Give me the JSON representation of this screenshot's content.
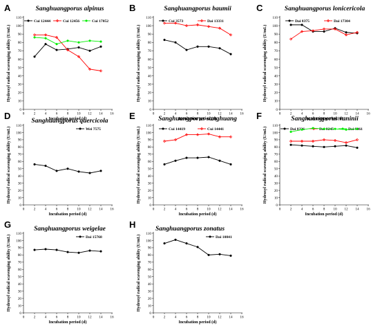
{
  "chart_data": [
    {
      "type": "line",
      "panel_label": "A",
      "title": "Sanghuangporus alpinus",
      "xlabel": "Incubation period (d)",
      "ylabel": "Hydroxyl radical scavenging ability (U/mL)",
      "xlim": [
        0,
        16
      ],
      "ylim": [
        0,
        110
      ],
      "xticks": [
        0,
        2,
        4,
        6,
        8,
        10,
        12,
        14,
        16
      ],
      "yticks": [
        0,
        10,
        20,
        30,
        40,
        50,
        60,
        70,
        80,
        90,
        100,
        110
      ],
      "legend_position": "top",
      "x": [
        2,
        4,
        6,
        8,
        10,
        12,
        14
      ],
      "series": [
        {
          "name": "Cui 12444",
          "color": "#000000",
          "values": [
            63,
            78,
            71,
            72,
            74,
            70,
            75
          ]
        },
        {
          "name": "Cui 12456",
          "color": "#ff0000",
          "values": [
            89,
            89,
            86,
            71,
            63,
            48,
            46
          ]
        },
        {
          "name": "Cui 17052",
          "color": "#00ee00",
          "values": [
            86,
            85,
            78,
            82,
            80,
            82,
            81
          ]
        }
      ]
    },
    {
      "type": "line",
      "panel_label": "B",
      "title": "Sanghuangporus baumii",
      "xlabel": "Incubation period (d)",
      "ylabel": "Hydroxyl radical scavenging ability (U/mL)",
      "xlim": [
        0,
        16
      ],
      "ylim": [
        0,
        110
      ],
      "xticks": [
        0,
        2,
        4,
        6,
        8,
        10,
        12,
        14,
        16
      ],
      "yticks": [
        0,
        10,
        20,
        30,
        40,
        50,
        60,
        70,
        80,
        90,
        100,
        110
      ],
      "legend_position": "top",
      "x": [
        2,
        4,
        6,
        8,
        10,
        12,
        14
      ],
      "series": [
        {
          "name": "Cui 3573",
          "color": "#000000",
          "values": [
            83,
            80,
            71,
            75,
            75,
            73,
            66
          ]
        },
        {
          "name": "Dai 13331",
          "color": "#ff0000",
          "values": [
            103,
            103,
            100,
            101,
            99,
            97,
            89
          ]
        }
      ]
    },
    {
      "type": "line",
      "panel_label": "C",
      "title": "Sanghuangporus lonicericola",
      "xlabel": "Incubation period (d)",
      "ylabel": "Hydroxyl radical scavenging ability (U/mL)",
      "xlim": [
        0,
        16
      ],
      "ylim": [
        0,
        110
      ],
      "xticks": [
        0,
        2,
        4,
        6,
        8,
        10,
        12,
        14,
        16
      ],
      "yticks": [
        0,
        10,
        20,
        30,
        40,
        50,
        60,
        70,
        80,
        90,
        100,
        110
      ],
      "legend_position": "top",
      "x": [
        2,
        4,
        6,
        8,
        10,
        12,
        14
      ],
      "series": [
        {
          "name": "Dai 8375",
          "color": "#000000",
          "values": [
            101,
            101,
            93,
            93,
            97,
            92,
            91
          ]
        },
        {
          "name": "Dai 17304",
          "color": "#ff0000",
          "values": [
            84,
            93,
            94,
            96,
            96,
            89,
            92
          ]
        }
      ]
    },
    {
      "type": "line",
      "panel_label": "D",
      "title": "Sanghuangporus quercicola",
      "xlabel": "Incubation period (d)",
      "ylabel": "Hydroxyl radical scavenging ability (U/mL)",
      "xlim": [
        0,
        16
      ],
      "ylim": [
        0,
        110
      ],
      "xticks": [
        0,
        2,
        4,
        6,
        8,
        10,
        12,
        14,
        16
      ],
      "yticks": [
        0,
        10,
        20,
        30,
        40,
        50,
        60,
        70,
        80,
        90,
        100,
        110
      ],
      "legend_position": "top",
      "x": [
        2,
        4,
        6,
        8,
        10,
        12,
        14
      ],
      "series": [
        {
          "name": "Wei 7575",
          "color": "#000000",
          "values": [
            56,
            54,
            47,
            50,
            46,
            44,
            47
          ]
        }
      ]
    },
    {
      "type": "line",
      "panel_label": "E",
      "title": "Sanghuangporus sanghuang",
      "xlabel": "Incubation period (d)",
      "ylabel": "Hydroxyl radical scavenging ability (U/mL)",
      "xlim": [
        0,
        16
      ],
      "ylim": [
        0,
        110
      ],
      "xticks": [
        0,
        2,
        4,
        6,
        8,
        10,
        12,
        14,
        16
      ],
      "yticks": [
        0,
        10,
        20,
        30,
        40,
        50,
        60,
        70,
        80,
        90,
        100,
        110
      ],
      "legend_position": "top",
      "x": [
        2,
        4,
        6,
        8,
        10,
        12,
        14
      ],
      "series": [
        {
          "name": "Cui 14419",
          "color": "#000000",
          "values": [
            56,
            61,
            65,
            65,
            66,
            61,
            56
          ]
        },
        {
          "name": "Cui 14441",
          "color": "#ff0000",
          "values": [
            88,
            90,
            97,
            97,
            98,
            94,
            94
          ]
        }
      ]
    },
    {
      "type": "line",
      "panel_label": "F",
      "title": "Sanghuangporus vaninii",
      "xlabel": "Incubation period (d)",
      "ylabel": "Hydroxyl radical scavenging ability (U/mL)",
      "xlim": [
        0,
        16
      ],
      "ylim": [
        0,
        110
      ],
      "xticks": [
        0,
        2,
        4,
        6,
        8,
        10,
        12,
        14,
        16
      ],
      "yticks": [
        0,
        10,
        20,
        30,
        40,
        50,
        60,
        70,
        80,
        90,
        100,
        110
      ],
      "legend_position": "top",
      "x": [
        2,
        4,
        6,
        8,
        10,
        12,
        14
      ],
      "series": [
        {
          "name": "Dai 8236",
          "color": "#000000",
          "values": [
            83,
            82,
            81,
            80,
            81,
            82,
            79
          ]
        },
        {
          "name": "Dai 8245",
          "color": "#ff0000",
          "values": [
            88,
            88,
            88,
            90,
            89,
            86,
            90
          ]
        },
        {
          "name": "Dai 9061",
          "color": "#00ee00",
          "values": [
            101,
            104,
            106,
            105,
            105,
            104,
            105
          ]
        }
      ]
    },
    {
      "type": "line",
      "panel_label": "G",
      "title": "Sanghuangporus weigelae",
      "xlabel": "Incubation period (d)",
      "ylabel": "Hydroxyl radical scavenging ability (U/mL)",
      "xlim": [
        0,
        16
      ],
      "ylim": [
        0,
        110
      ],
      "xticks": [
        0,
        2,
        4,
        6,
        8,
        10,
        12,
        14,
        16
      ],
      "yticks": [
        0,
        10,
        20,
        30,
        40,
        50,
        60,
        70,
        80,
        90,
        100,
        110
      ],
      "legend_position": "top",
      "x": [
        2,
        4,
        6,
        8,
        10,
        12,
        14
      ],
      "series": [
        {
          "name": "Dai 15768",
          "color": "#000000",
          "values": [
            87,
            88,
            87,
            84,
            83,
            86,
            85
          ]
        }
      ]
    },
    {
      "type": "line",
      "panel_label": "H",
      "title": "Sanghuangporus zonatus",
      "xlabel": "Incubation period (d)",
      "ylabel": "Hydroxyl radical scavenging ability (U/mL)",
      "xlim": [
        0,
        16
      ],
      "ylim": [
        0,
        110
      ],
      "xticks": [
        0,
        2,
        4,
        6,
        8,
        10,
        12,
        14,
        16
      ],
      "yticks": [
        0,
        10,
        20,
        30,
        40,
        50,
        60,
        70,
        80,
        90,
        100,
        110
      ],
      "legend_position": "top",
      "x": [
        2,
        4,
        6,
        8,
        10,
        12,
        14
      ],
      "series": [
        {
          "name": "Dai 10841",
          "color": "#000000",
          "values": [
            96,
            101,
            96,
            91,
            80,
            81,
            79
          ]
        }
      ]
    }
  ]
}
